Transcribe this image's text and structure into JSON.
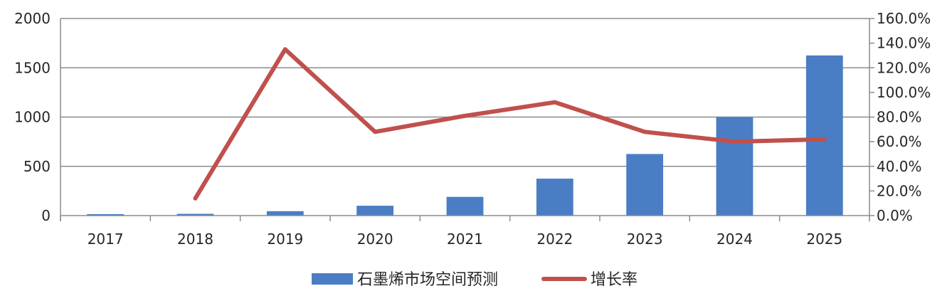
{
  "chart_data": {
    "type": "bar+line",
    "title": "",
    "categories": [
      "2017",
      "2018",
      "2019",
      "2020",
      "2021",
      "2022",
      "2023",
      "2024",
      "2025"
    ],
    "series": [
      {
        "name": "石墨烯市场空间预测",
        "type": "bar",
        "axis": "left",
        "color": "#4a7dc4",
        "values": [
          15,
          18,
          45,
          100,
          190,
          375,
          625,
          1000,
          1625
        ]
      },
      {
        "name": "增长率",
        "type": "line",
        "axis": "right",
        "color": "#c0504d",
        "values": [
          null,
          14,
          135,
          68,
          81,
          92,
          68,
          60,
          62
        ]
      }
    ],
    "y_left": {
      "min": 0,
      "max": 2000,
      "ticks": [
        "0",
        "500",
        "1000",
        "1500",
        "2000"
      ]
    },
    "y_right": {
      "min": 0,
      "max": 160,
      "ticks": [
        "0.0%",
        "20.0%",
        "40.0%",
        "60.0%",
        "80.0%",
        "100.0%",
        "120.0%",
        "140.0%",
        "160.0%"
      ]
    },
    "grid": true,
    "legend": "bottom"
  }
}
